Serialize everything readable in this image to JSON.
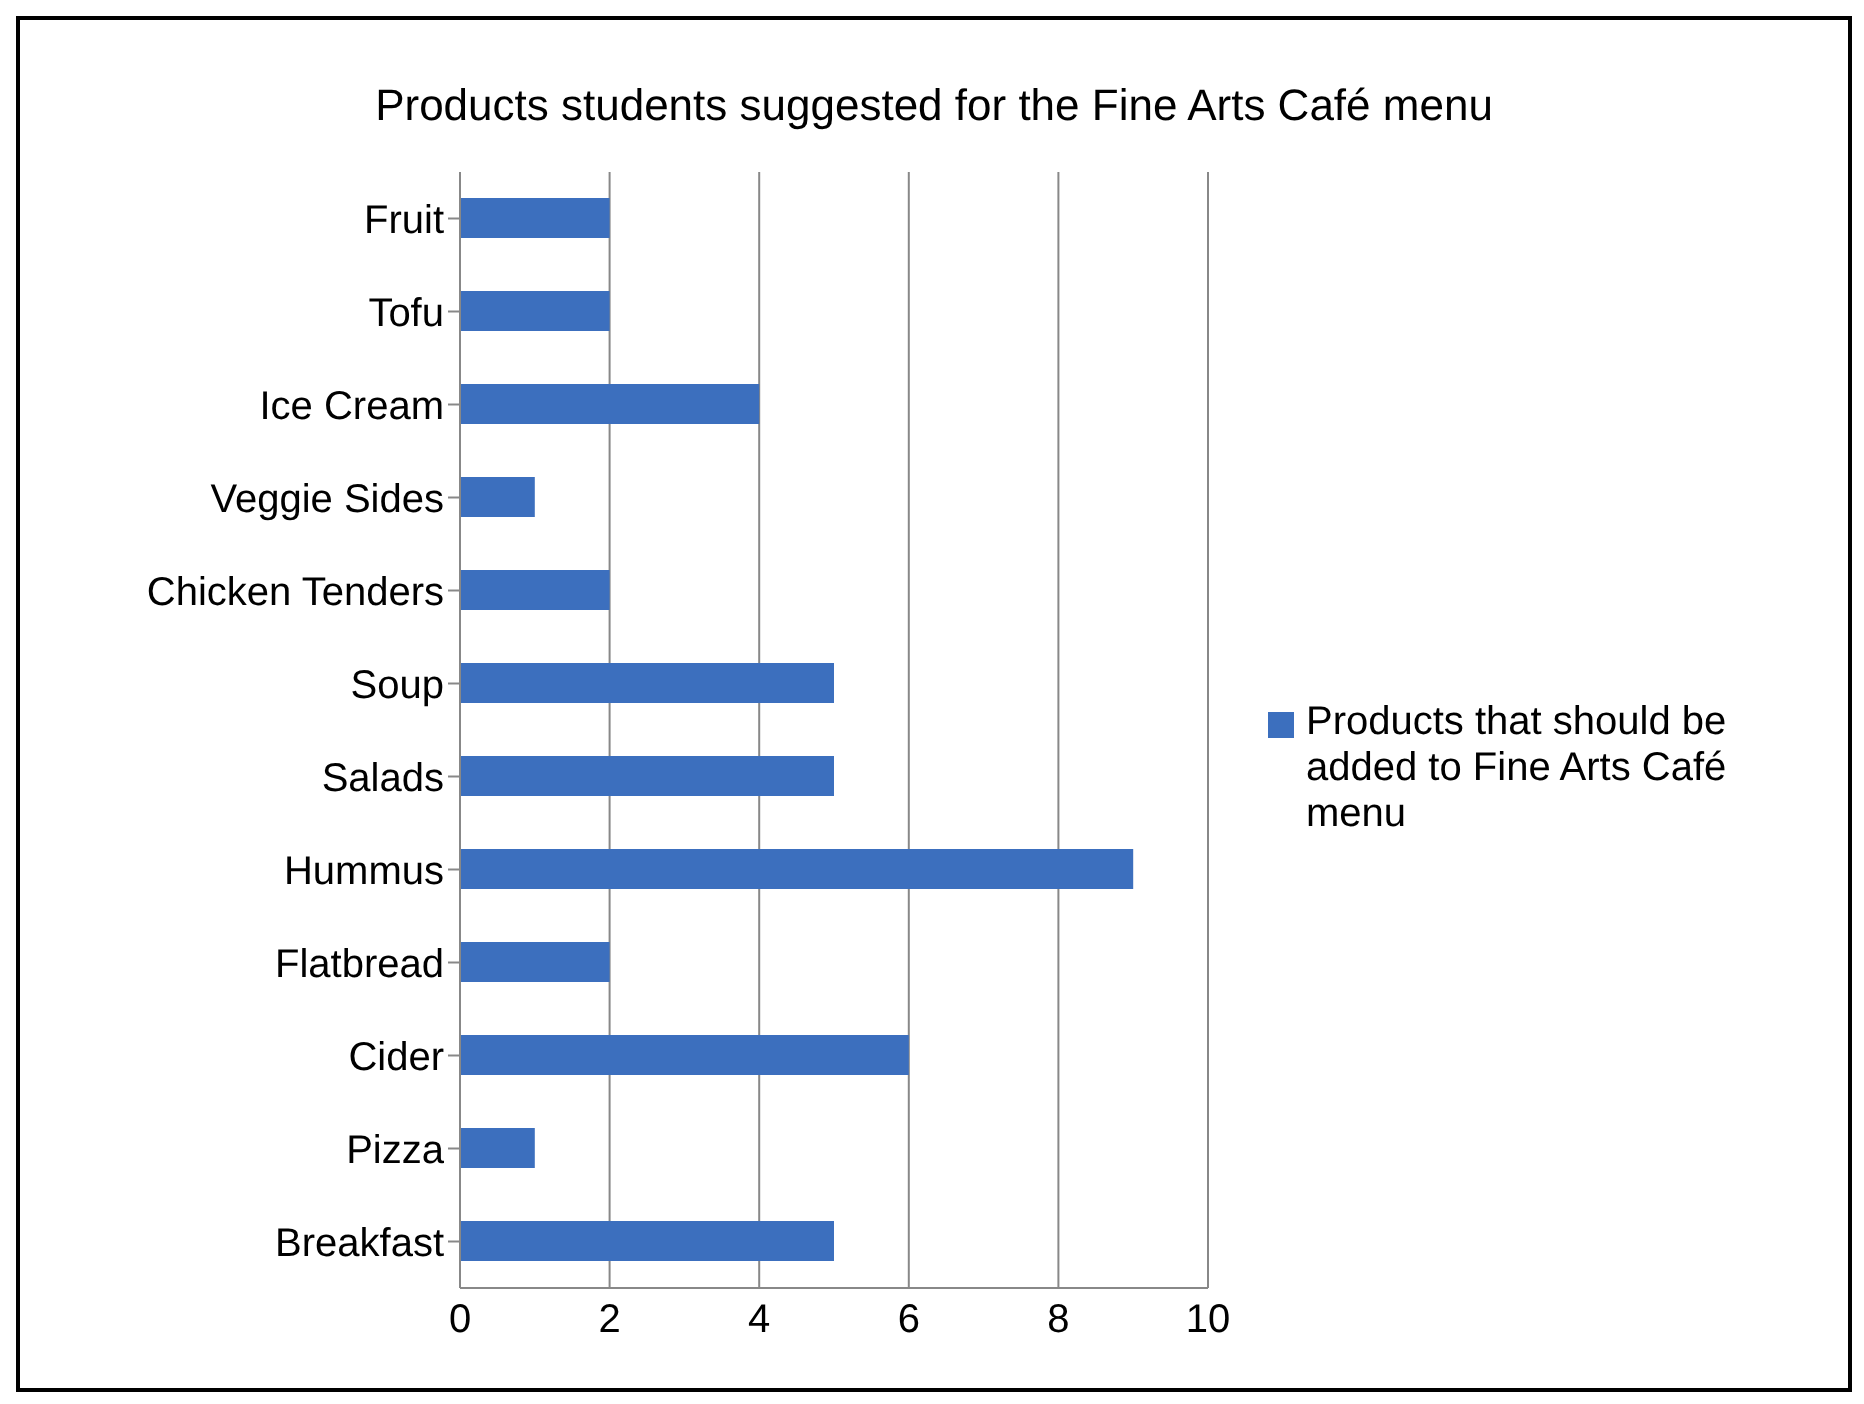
{
  "chart_data": {
    "type": "bar",
    "orientation": "horizontal",
    "title": "Products students suggested for the Fine Arts Café menu",
    "categories": [
      "Fruit",
      "Tofu",
      "Ice Cream",
      "Veggie Sides",
      "Chicken Tenders",
      "Soup",
      "Salads",
      "Hummus",
      "Flatbread",
      "Cider",
      "Pizza",
      "Breakfast"
    ],
    "series": [
      {
        "name": "Products that should be added to Fine Arts Café menu",
        "color": "#3c6fbe",
        "values": [
          2,
          2,
          4,
          1,
          2,
          5,
          5,
          9,
          2,
          6,
          1,
          5
        ]
      }
    ],
    "xlim": [
      0,
      10
    ],
    "xticks": [
      0,
      2,
      4,
      6,
      8,
      10
    ],
    "grid": "x",
    "legend": "right"
  }
}
